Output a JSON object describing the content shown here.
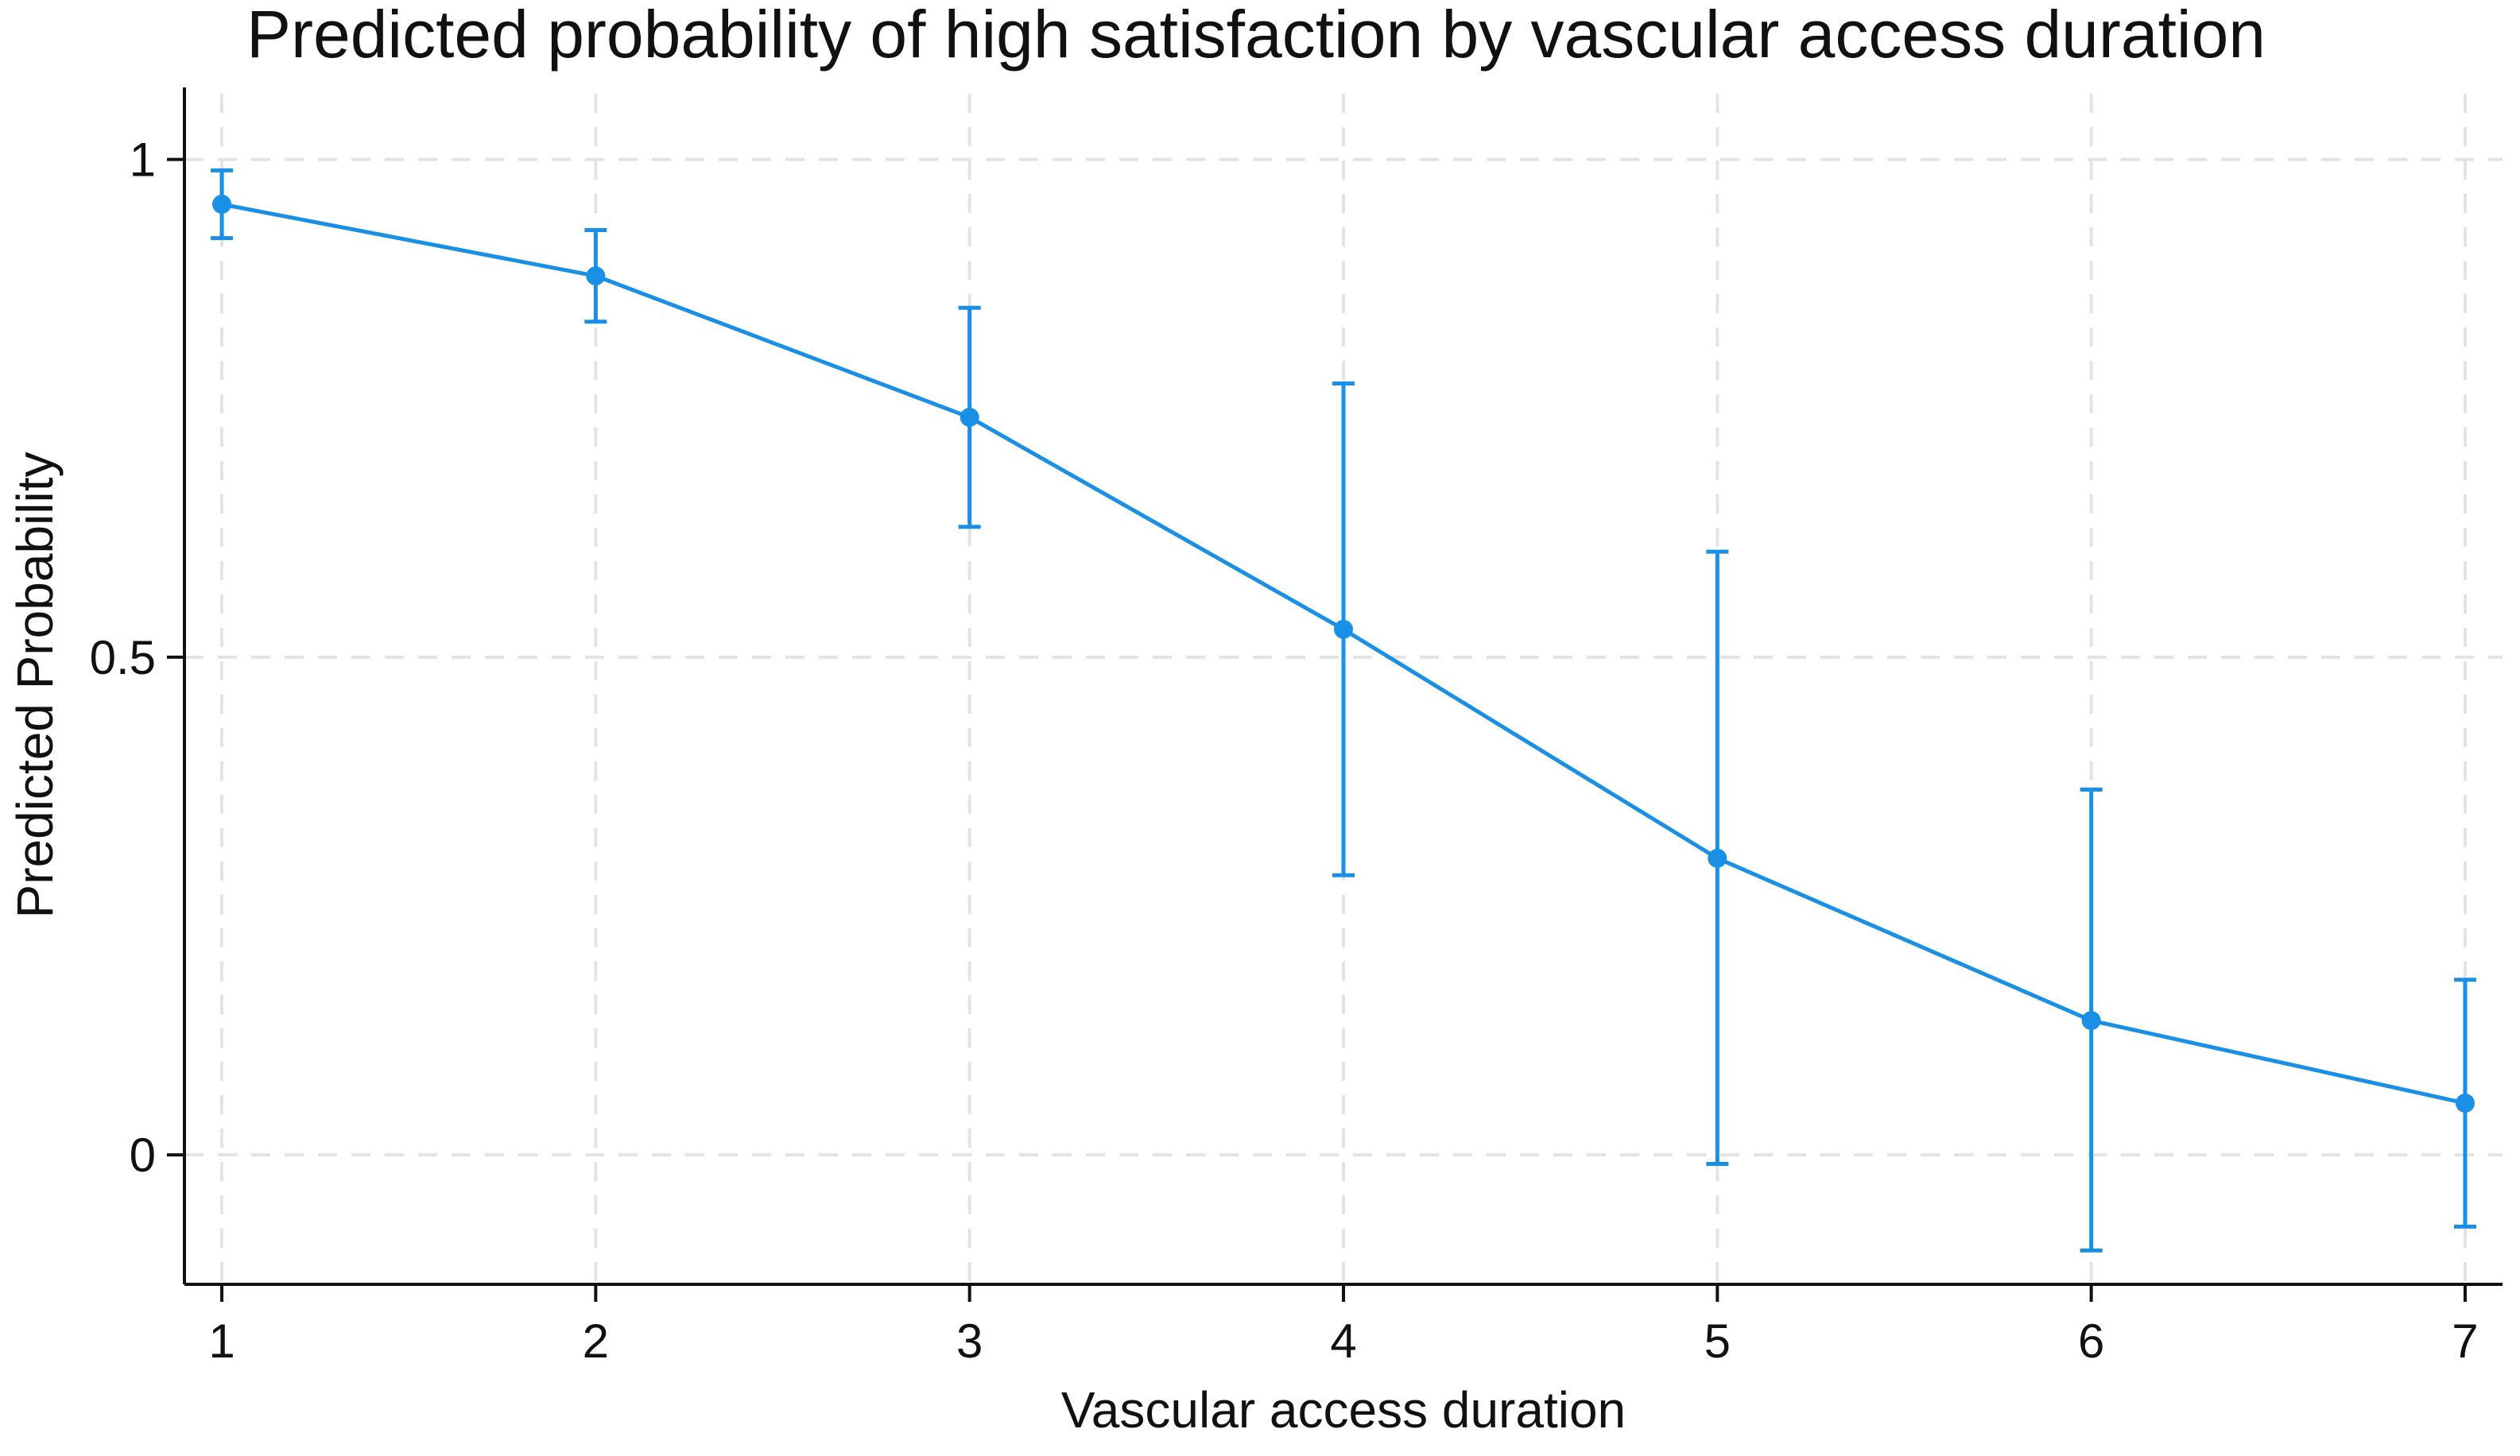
{
  "chart_data": {
    "type": "line",
    "title": "Predicted probability of high satisfaction by vascular access duration",
    "xlabel": "Vascular access duration",
    "ylabel": "Predicted Probability",
    "x": [
      1,
      2,
      3,
      4,
      5,
      6,
      7
    ],
    "x_tick_labels": [
      "1",
      "2",
      "3",
      "4",
      "5",
      "6",
      "7"
    ],
    "y_ticks": [
      0,
      0.5,
      1
    ],
    "y_tick_labels": [
      "0",
      "0.5",
      "1"
    ],
    "xlim": [
      0.9,
      7.1
    ],
    "ylim": [
      -0.13,
      1.05
    ],
    "grid": true,
    "legend": "none",
    "series": [
      {
        "name": "Predicted probability",
        "color": "#1a8fe6",
        "values": [
          0.955,
          0.883,
          0.741,
          0.528,
          0.298,
          0.135,
          0.052
        ],
        "ci_lower": [
          0.921,
          0.837,
          0.631,
          0.281,
          -0.009,
          -0.096,
          -0.072
        ],
        "ci_upper": [
          0.989,
          0.929,
          0.851,
          0.775,
          0.606,
          0.367,
          0.176
        ]
      }
    ]
  }
}
